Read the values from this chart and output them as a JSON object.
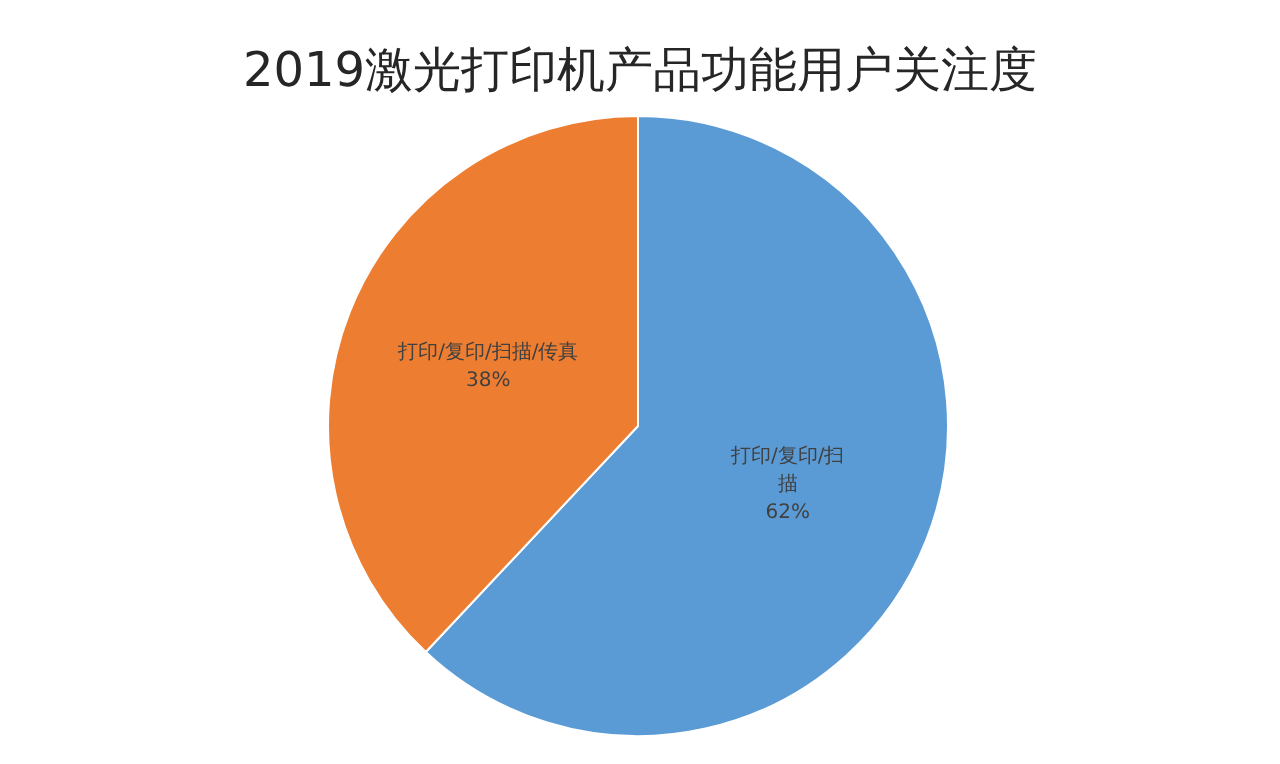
{
  "chart_data": {
    "type": "pie",
    "title": "2019激光打印机产品功能用户关注度",
    "categories": [
      "打印/复印/扫描",
      "打印/复印/扫描/传真"
    ],
    "values": [
      62,
      38
    ],
    "colors": [
      "#5b9bd5",
      "#ed7d31"
    ],
    "value_labels": [
      "62%",
      "38%"
    ]
  }
}
